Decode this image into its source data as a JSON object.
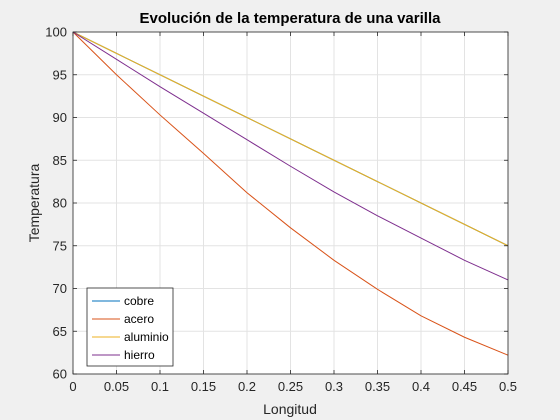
{
  "chart_data": {
    "type": "line",
    "title": "Evolución de la temperatura de una varilla",
    "xlabel": "Longitud",
    "ylabel": "Temperatura",
    "xlim": [
      0,
      0.5
    ],
    "ylim": [
      60,
      100
    ],
    "grid": true,
    "legend_position": "bottom-left",
    "x": [
      0,
      0.05,
      0.1,
      0.15,
      0.2,
      0.25,
      0.3,
      0.35,
      0.4,
      0.45,
      0.5
    ],
    "x_ticks": [
      "0",
      "0.05",
      "0.1",
      "0.15",
      "0.2",
      "0.25",
      "0.3",
      "0.35",
      "0.4",
      "0.45",
      "0.5"
    ],
    "y_ticks": [
      "60",
      "65",
      "70",
      "75",
      "80",
      "85",
      "90",
      "95",
      "100"
    ],
    "series": [
      {
        "name": "cobre",
        "color": "#0072BD",
        "values": [
          100,
          97.5,
          95.0,
          92.5,
          90.0,
          87.5,
          85.0,
          82.5,
          80.0,
          77.5,
          75.0
        ]
      },
      {
        "name": "acero",
        "color": "#D95319",
        "values": [
          100,
          95.0,
          90.3,
          85.8,
          81.2,
          77.1,
          73.3,
          69.9,
          66.8,
          64.3,
          62.2
        ]
      },
      {
        "name": "aluminio",
        "color": "#EDB120",
        "values": [
          100,
          97.5,
          95.0,
          92.5,
          90.0,
          87.5,
          85.0,
          82.5,
          80.0,
          77.5,
          75.0
        ]
      },
      {
        "name": "hierro",
        "color": "#7E2F8E",
        "values": [
          100,
          96.8,
          93.6,
          90.5,
          87.4,
          84.3,
          81.3,
          78.5,
          75.9,
          73.3,
          71.0
        ]
      }
    ]
  }
}
